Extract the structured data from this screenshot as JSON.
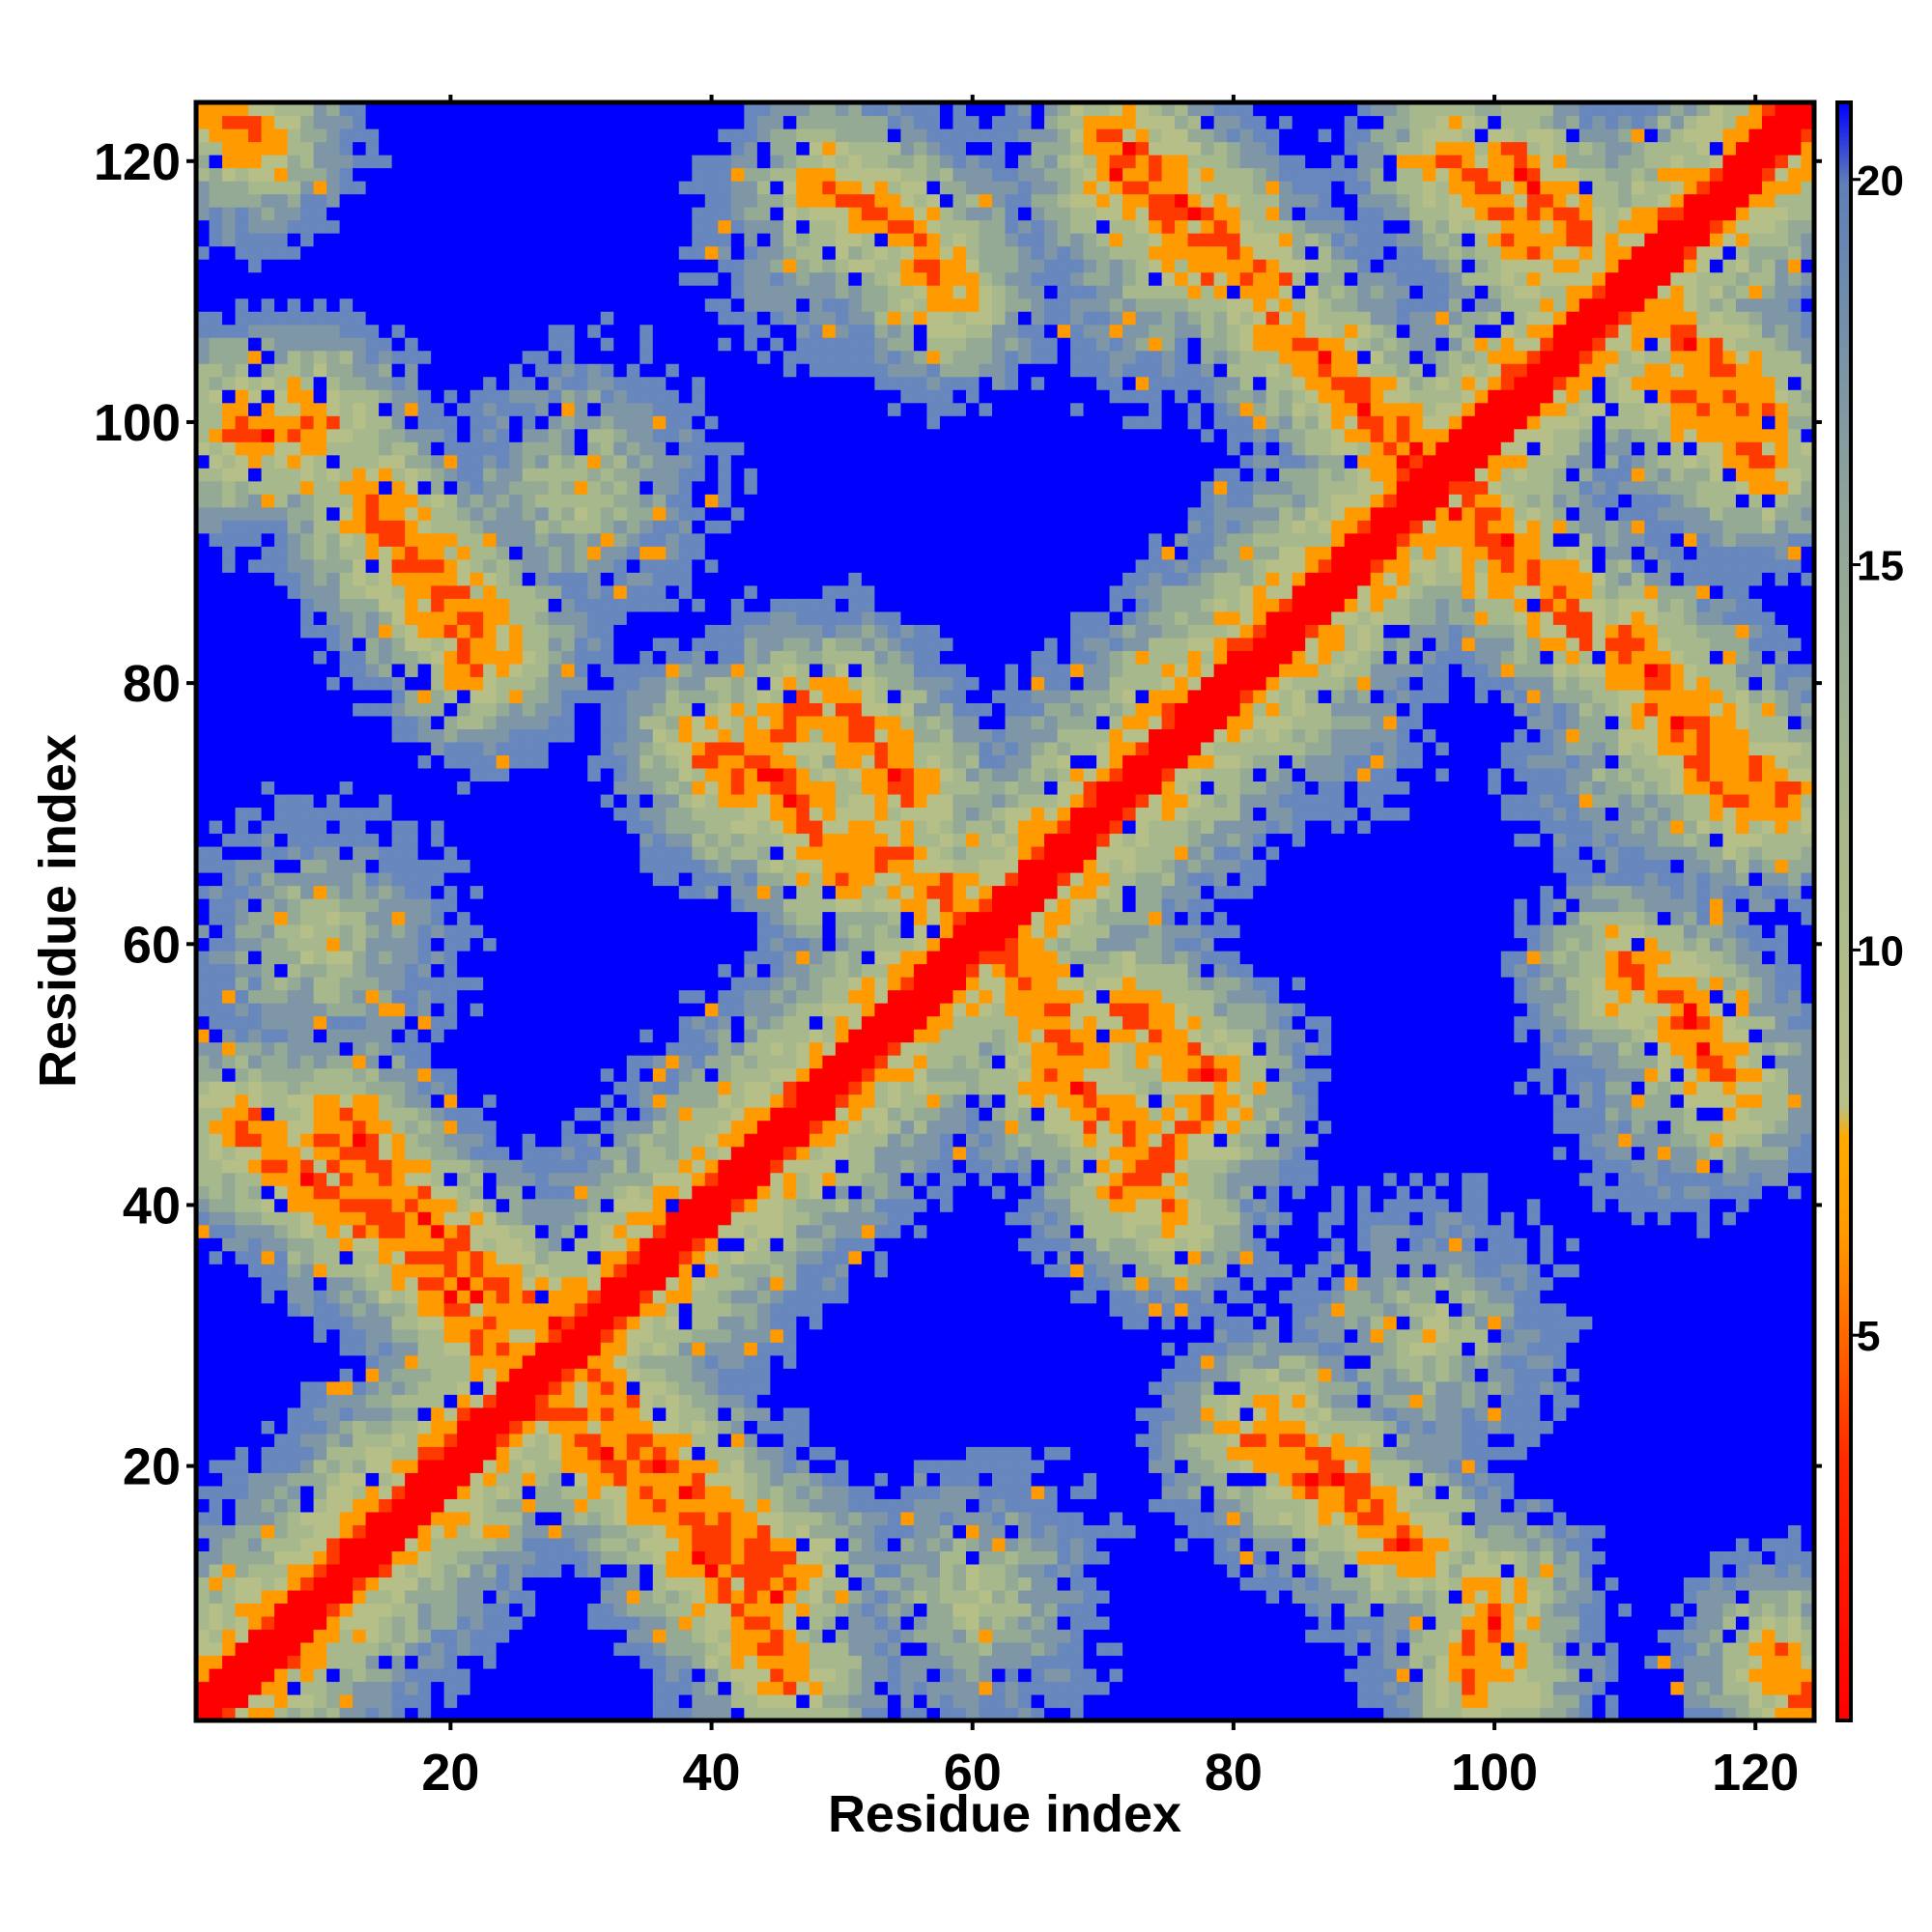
{
  "chart_data": {
    "type": "heatmap",
    "title": "",
    "xlabel": "Residue index",
    "ylabel": "Residue index",
    "n_residues": 124,
    "x_range": [
      1,
      124
    ],
    "y_range": [
      1,
      124
    ],
    "x_ticks": [
      20,
      40,
      60,
      80,
      100,
      120
    ],
    "y_ticks": [
      20,
      40,
      60,
      80,
      100,
      120
    ],
    "x_tick_labels": [
      "20",
      "40",
      "60",
      "80",
      "100",
      "120"
    ],
    "y_tick_labels": [
      "20",
      "40",
      "60",
      "80",
      "100",
      "120"
    ],
    "colorbar": {
      "range": [
        0,
        21
      ],
      "ticks": [
        5,
        10,
        15,
        20
      ],
      "tick_labels": [
        "5",
        "10",
        "15",
        "20"
      ],
      "colors": {
        "contact": "#ff0000",
        "near": "#ff9900",
        "mid": "#a8b88a",
        "far_light": "#7b93a8",
        "far": "#4f6fc4",
        "beyond": "#0000ff"
      },
      "thresholds": [
        4,
        8,
        11,
        14,
        17
      ]
    },
    "grid": false,
    "features": {
      "diagonal": "residue i vs i (distance 0)",
      "antiparallel_contacts": [
        {
          "center": [
            29,
            29
          ],
          "span": [
            [
              12,
              45
            ],
            [
              45,
              12
            ]
          ]
        },
        {
          "center": [
            82,
            82
          ],
          "span": [
            [
              72,
              110
            ],
            [
              110,
              72
            ]
          ]
        },
        {
          "center": [
            95,
            95
          ],
          "span": [
            [
              83,
              118
            ],
            [
              118,
              83
            ]
          ]
        },
        {
          "center": [
            90,
            17
          ],
          "span": [
            [
              83,
              22
            ],
            [
              98,
              13
            ]
          ]
        },
        {
          "center": [
            18,
            88
          ],
          "span": [
            [
              14,
              94
            ],
            [
              23,
              82
            ]
          ]
        },
        {
          "center": [
            72,
            46
          ],
          "span": [
            [
              71,
              40
            ],
            [
              76,
              48
            ]
          ]
        },
        {
          "center": [
            105,
            105
          ],
          "span": [
            [
              102,
              118
            ],
            [
              118,
              102
            ]
          ]
        }
      ]
    }
  }
}
